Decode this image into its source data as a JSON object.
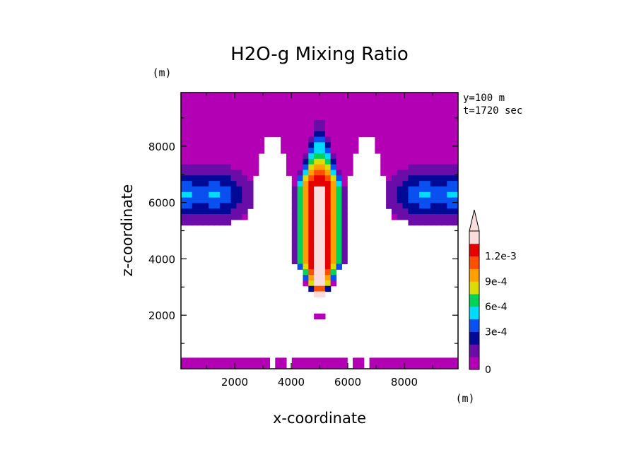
{
  "chart_data": {
    "type": "heatmap",
    "title": "H2O-g Mixing Ratio",
    "xlabel": "x-coordinate",
    "ylabel": "z-coordinate",
    "x_unit": "(m)",
    "y_unit": "(m)",
    "annotations": [
      "y=100 m",
      "t=1720 sec"
    ],
    "xlim": [
      100,
      9900
    ],
    "ylim": [
      100,
      9900
    ],
    "x_ticks": [
      {
        "value": 2000,
        "label": "2000"
      },
      {
        "value": 4000,
        "label": "4000"
      },
      {
        "value": 6000,
        "label": "6000"
      },
      {
        "value": 8000,
        "label": "8000"
      }
    ],
    "y_ticks": [
      {
        "value": 2000,
        "label": "2000"
      },
      {
        "value": 4000,
        "label": "4000"
      },
      {
        "value": 6000,
        "label": "6000"
      },
      {
        "value": 8000,
        "label": "8000"
      }
    ],
    "colorbar": {
      "levels": [
        0,
        0.00015,
        0.0003,
        0.00045,
        0.0006,
        0.00075,
        0.0009,
        0.00105,
        0.0012,
        0.00135
      ],
      "colors": [
        "#b400b4",
        "#6a0da8",
        "#000a96",
        "#0a50f0",
        "#00dcff",
        "#00d25a",
        "#dcdc00",
        "#ffa000",
        "#ff5000",
        "#e60000",
        "#fadcdc"
      ],
      "labels": [
        {
          "value": 0,
          "label": "0"
        },
        {
          "value": 0.0003,
          "label": "3e-4"
        },
        {
          "value": 0.0006,
          "label": "6e-4"
        },
        {
          "value": 0.0009,
          "label": "9e-4"
        },
        {
          "value": 0.0012,
          "label": "1.2e-3"
        }
      ],
      "extend": "max"
    },
    "regions": [
      {
        "name": "upper-background",
        "value_class": 0,
        "x": [
          100,
          9900
        ],
        "z": [
          8400,
          9900
        ]
      },
      {
        "name": "central-plume",
        "peak_value": 0.00135,
        "x_range": [
          4100,
          5900
        ],
        "z_range": [
          2600,
          9000
        ],
        "center_x": 5000
      },
      {
        "name": "left-side-cloud",
        "peak_value": 0.0004,
        "x_range": [
          100,
          2600
        ],
        "z_range": [
          5100,
          8000
        ]
      },
      {
        "name": "right-side-cloud",
        "peak_value": 0.0004,
        "x_range": [
          7400,
          9900
        ],
        "z_range": [
          5100,
          8000
        ]
      },
      {
        "name": "surface-layer",
        "value_class": 0,
        "x": [
          100,
          9900
        ],
        "z": [
          100,
          400
        ]
      }
    ]
  }
}
